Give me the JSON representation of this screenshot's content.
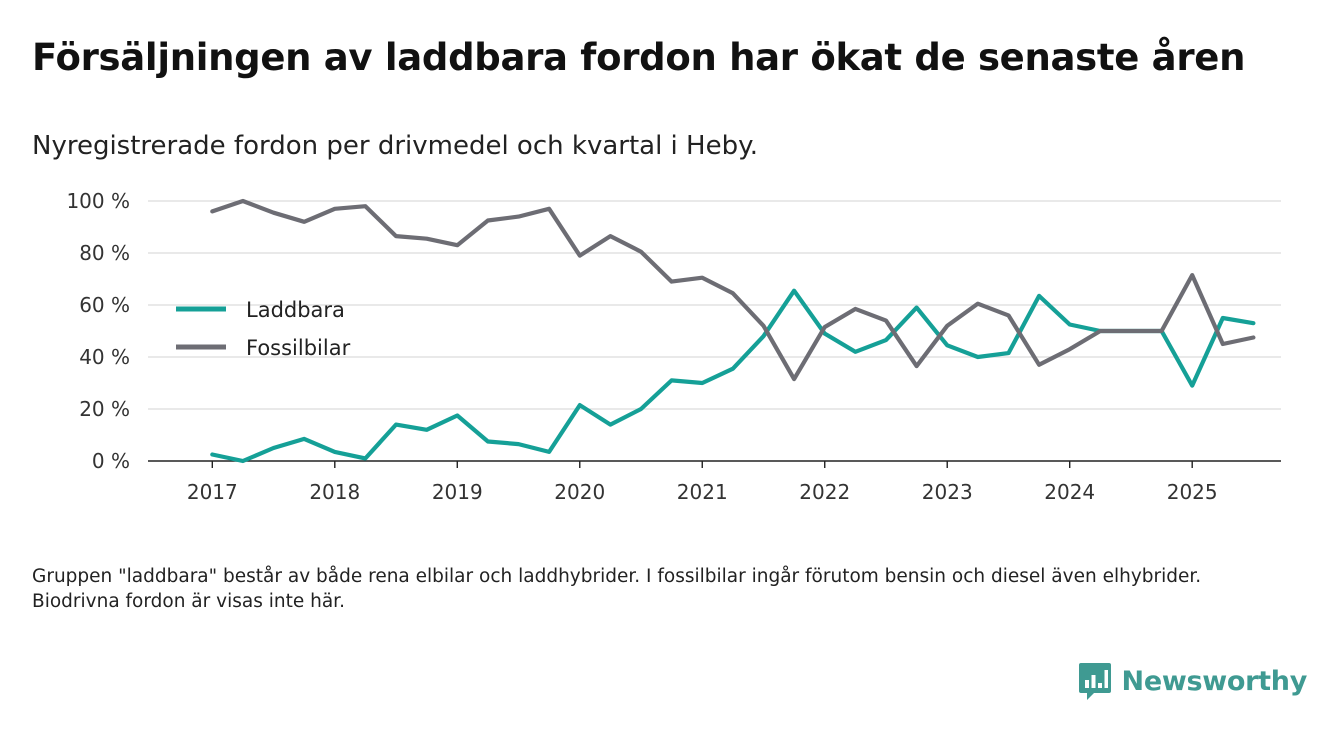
{
  "header": {
    "title": "Försäljningen av laddbara fordon har ökat de senaste åren",
    "subtitle": "Nyregistrerade fordon per drivmedel och kvartal i Heby."
  },
  "footnote": "Gruppen \"laddbara\" består av både rena elbilar och laddhybrider. I fossilbilar ingår förutom bensin och diesel även elhybrider. Biodrivna fordon är visas inte här.",
  "brand": {
    "name": "Newsworthy",
    "icon": "newsworthy-logo-icon",
    "color": "#3f9a92"
  },
  "chart_data": {
    "type": "line",
    "title": "Försäljningen av laddbara fordon har ökat de senaste åren",
    "subtitle": "Nyregistrerade fordon per drivmedel och kvartal i Heby.",
    "xlabel": "",
    "ylabel": "",
    "x_unit": "quarter index (0 = 2017 Q1)",
    "x": [
      0,
      1,
      2,
      3,
      4,
      5,
      6,
      7,
      8,
      9,
      10,
      11,
      12,
      13,
      14,
      15,
      16,
      17,
      18,
      19,
      20,
      21,
      22,
      23,
      24,
      25,
      26,
      27,
      28,
      29,
      30,
      31,
      32,
      33,
      34
    ],
    "xlim": [
      -2.1,
      34.9
    ],
    "ylim": [
      0,
      100
    ],
    "x_ticks": [
      {
        "x": 0,
        "label": "2017"
      },
      {
        "x": 4,
        "label": "2018"
      },
      {
        "x": 8,
        "label": "2019"
      },
      {
        "x": 12,
        "label": "2020"
      },
      {
        "x": 16,
        "label": "2021"
      },
      {
        "x": 20,
        "label": "2022"
      },
      {
        "x": 24,
        "label": "2023"
      },
      {
        "x": 28,
        "label": "2024"
      },
      {
        "x": 32,
        "label": "2025"
      }
    ],
    "y_ticks": [
      {
        "y": 0,
        "label": "0 %"
      },
      {
        "y": 20,
        "label": "20 %"
      },
      {
        "y": 40,
        "label": "40 %"
      },
      {
        "y": 60,
        "label": "60 %"
      },
      {
        "y": 80,
        "label": "80 %"
      },
      {
        "y": 100,
        "label": "100 %"
      }
    ],
    "grid": true,
    "legend_position": "left-middle",
    "series": [
      {
        "name": "Laddbara",
        "color": "#15a097",
        "values": [
          2.5,
          0,
          5,
          8.5,
          3.5,
          1,
          14,
          12,
          17.5,
          7.5,
          6.5,
          3.5,
          21.5,
          14,
          20,
          31,
          30,
          35.5,
          48,
          65.5,
          49,
          42,
          46.5,
          59,
          44.5,
          40,
          41.5,
          63.5,
          52.5,
          50,
          50,
          50,
          29,
          55,
          53
        ]
      },
      {
        "name": "Fossilbilar",
        "color": "#6d6d74",
        "values": [
          96,
          100,
          95.5,
          92,
          97,
          98,
          86.5,
          85.5,
          83,
          92.5,
          94,
          97,
          79,
          86.5,
          80.5,
          69,
          70.5,
          64.5,
          52,
          31.5,
          51.5,
          58.5,
          54,
          36.5,
          52,
          60.5,
          56,
          37,
          43,
          50,
          50,
          50,
          71.5,
          45,
          47.5
        ]
      }
    ]
  }
}
